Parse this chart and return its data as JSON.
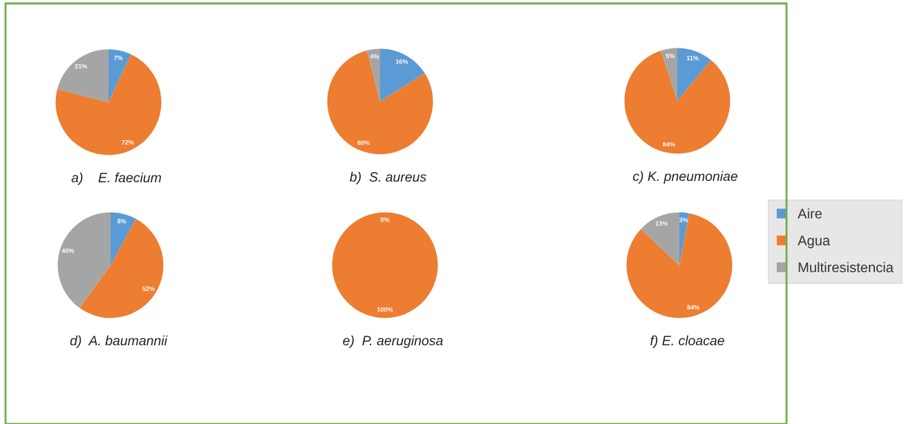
{
  "chart_data": [
    {
      "type": "pie",
      "title": "a)    E. faecium",
      "categories": [
        "Aire",
        "Agua",
        "Multiresistencia"
      ],
      "values": [
        7,
        72,
        21
      ],
      "colors": [
        "#5b9bd5",
        "#ed7d31",
        "#a5a5a5"
      ],
      "value_labels": [
        "7%",
        "72%",
        "21%"
      ],
      "legend": "right"
    },
    {
      "type": "pie",
      "title": "b)  S. aureus",
      "categories": [
        null,
        null,
        null
      ],
      "values": [
        16,
        80,
        4
      ],
      "colors": [
        "#5b9bd5",
        "#ed7d31",
        "#a5a5a5"
      ],
      "value_labels": [
        "16%",
        "80%",
        "4%"
      ]
    },
    {
      "type": "pie",
      "title": "c) K. pneumoniae",
      "categories": [
        null,
        null,
        null
      ],
      "values": [
        11,
        84,
        5
      ],
      "colors": [
        "#5b9bd5",
        "#ed7d31",
        "#a5a5a5"
      ],
      "value_labels": [
        "11%",
        "84%",
        "5%"
      ]
    },
    {
      "type": "pie",
      "title": "d)  A. baumannii",
      "categories": [
        null,
        null,
        null
      ],
      "values": [
        8,
        52,
        40
      ],
      "colors": [
        "#5b9bd5",
        "#ed7d31",
        "#a5a5a5"
      ],
      "value_labels": [
        "8%",
        "52%",
        "40%"
      ]
    },
    {
      "type": "pie",
      "title": "e)  P. aeruginosa",
      "categories": [
        null,
        null,
        null
      ],
      "values": [
        0,
        100,
        0
      ],
      "colors": [
        "#5b9bd5",
        "#ed7d31",
        "#a5a5a5"
      ],
      "value_labels": [
        "0%",
        "100%",
        null
      ]
    },
    {
      "type": "pie",
      "title": "f) E. cloacae",
      "categories": [
        null,
        null,
        null
      ],
      "values": [
        3,
        84,
        13
      ],
      "colors": [
        "#5b9bd5",
        "#ed7d31",
        "#a5a5a5"
      ],
      "value_labels": [
        "3%",
        "84%",
        "13%"
      ]
    }
  ]
}
